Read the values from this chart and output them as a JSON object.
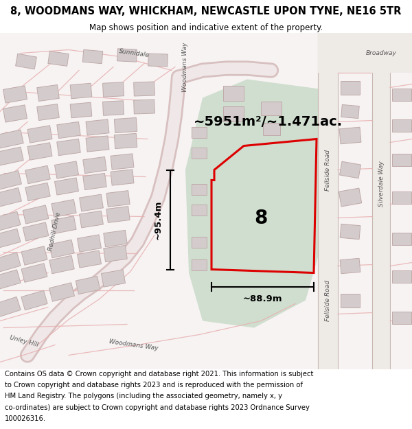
{
  "title": "8, WOODMANS WAY, WHICKHAM, NEWCASTLE UPON TYNE, NE16 5TR",
  "subtitle": "Map shows position and indicative extent of the property.",
  "area_label": "~5951m²/~1.471ac.",
  "width_label": "~88.9m",
  "height_label": "~95.4m",
  "number_label": "8",
  "footer": "Contains OS data © Crown copyright and database right 2021. This information is subject to Crown copyright and database rights 2023 and is reproduced with the permission of HM Land Registry. The polygons (including the associated geometry, namely x, y co-ordinates) are subject to Crown copyright and database rights 2023 Ordnance Survey 100026316.",
  "bg_color": "#ffffff",
  "map_bg": "#f7f3f3",
  "green_fill": "#cfdece",
  "red_color": "#dd0000",
  "road_outline": "#e8b0b0",
  "road_fill": "#f5eded",
  "building_fill": "#d4cccc",
  "building_edge": "#c0aaaa",
  "fellside_road_fill": "#e8e0d8",
  "title_fontsize": 10.5,
  "subtitle_fontsize": 8.5,
  "footer_fontsize": 7.2,
  "area_fontsize": 14,
  "number_fontsize": 20,
  "dim_fontsize": 9.5
}
